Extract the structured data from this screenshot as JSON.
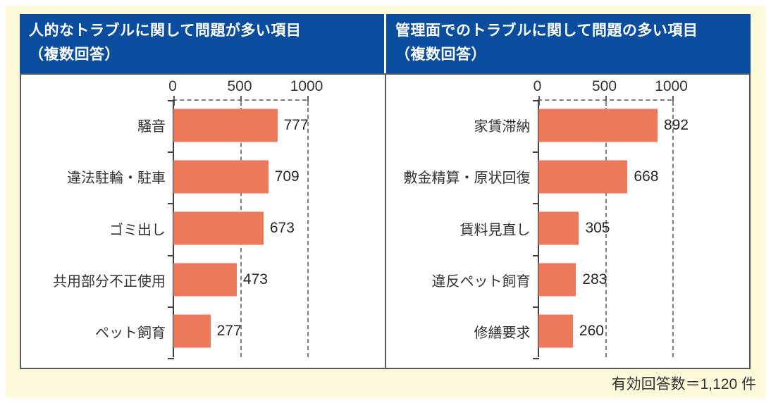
{
  "footer": {
    "note": "有効回答数＝1,120 件"
  },
  "colors": {
    "header_bg": "#0B4EA0",
    "bar": "#ED795B",
    "frame_bg": "#FDFADA",
    "box_border": "#595959",
    "gridline": "#7F7F7F",
    "text": "#333333"
  },
  "chart_data": [
    {
      "type": "bar",
      "orientation": "horizontal",
      "title": "人的なトラブルに関して問題が多い項目",
      "subtitle": "（複数回答）",
      "categories": [
        "騒音",
        "違法駐輪・駐車",
        "ゴミ出し",
        "共用部分不正使用",
        "ペット飼育"
      ],
      "values": [
        777,
        709,
        673,
        473,
        277
      ],
      "xlim": [
        0,
        1000
      ],
      "xticks": [
        0,
        500,
        1000
      ],
      "xlabel": "",
      "ylabel": "",
      "grid": "dashed-vertical",
      "legend": "none",
      "data_labels": true
    },
    {
      "type": "bar",
      "orientation": "horizontal",
      "title": "管理面でのトラブルに関して問題の多い項目",
      "subtitle": "（複数回答）",
      "categories": [
        "家賃滞納",
        "敷金精算・原状回復",
        "賃料見直し",
        "違反ペット飼育",
        "修繕要求"
      ],
      "values": [
        892,
        668,
        305,
        283,
        260
      ],
      "xlim": [
        0,
        1000
      ],
      "xticks": [
        0,
        500,
        1000
      ],
      "xlabel": "",
      "ylabel": "",
      "grid": "dashed-vertical",
      "legend": "none",
      "data_labels": true
    }
  ]
}
